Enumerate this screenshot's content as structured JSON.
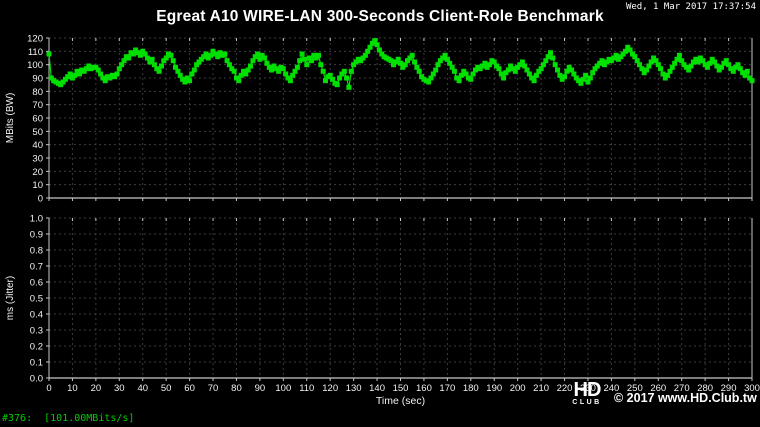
{
  "window": {
    "timestamp": "Wed, 1 Mar 2017 17:37:54"
  },
  "title": "Egreat A10 WIRE-LAN 300-Seconds Client-Role Benchmark",
  "status_bar": {
    "text": "#376:  [101.00MBits/s]"
  },
  "watermark": {
    "logo_hd": "HD",
    "logo_club": "CLUB",
    "copyright": "© 2017 www.HD.Club.tw"
  },
  "colors": {
    "background": "#000000",
    "series_green": "#00e000",
    "grid": "#3d3d3d",
    "axis": "#c8c8c8",
    "tick_label": "#f2f2f2",
    "status_green": "#00cc00",
    "watermark_white": "#ffffff"
  },
  "chart_data": [
    {
      "type": "line",
      "name": "bandwidth-panel",
      "ylabel": "MBits (BW)",
      "xlabel": "",
      "xlim": [
        0,
        300
      ],
      "ylim": [
        0,
        120
      ],
      "x_tick_step": 10,
      "y_tick_step": 10,
      "y_tick_decimals": 0,
      "show_x_tick_labels": false,
      "grid": true,
      "legend": "none",
      "marker": "square",
      "series": [
        {
          "name": "bandwidth",
          "color": "#00e000",
          "x_start": 0,
          "x_step": 1,
          "values": [
            108,
            90,
            88,
            87,
            86,
            85,
            87,
            89,
            91,
            93,
            90,
            92,
            95,
            93,
            96,
            95,
            97,
            99,
            97,
            98,
            98,
            96,
            93,
            90,
            88,
            91,
            90,
            92,
            91,
            93,
            97,
            100,
            103,
            106,
            105,
            109,
            108,
            111,
            109,
            107,
            110,
            108,
            105,
            102,
            104,
            100,
            97,
            95,
            99,
            103,
            105,
            108,
            107,
            103,
            98,
            95,
            92,
            89,
            87,
            90,
            88,
            93,
            96,
            100,
            102,
            104,
            106,
            108,
            105,
            107,
            110,
            108,
            106,
            109,
            107,
            108,
            103,
            100,
            97,
            95,
            90,
            88,
            92,
            95,
            93,
            96,
            99,
            103,
            106,
            108,
            104,
            107,
            105,
            101,
            98,
            96,
            99,
            97,
            95,
            98,
            97,
            93,
            90,
            88,
            92,
            95,
            98,
            103,
            108,
            104,
            100,
            105,
            103,
            107,
            105,
            107,
            100,
            95,
            88,
            91,
            92,
            89,
            86,
            85,
            90,
            93,
            95,
            90,
            83,
            95,
            100,
            102,
            104,
            103,
            105,
            107,
            110,
            113,
            116,
            118,
            115,
            111,
            108,
            106,
            105,
            104,
            103,
            100,
            102,
            104,
            101,
            98,
            100,
            103,
            105,
            107,
            102,
            98,
            95,
            91,
            89,
            88,
            87,
            90,
            93,
            96,
            100,
            103,
            105,
            107,
            104,
            101,
            98,
            95,
            90,
            88,
            92,
            95,
            93,
            90,
            89,
            93,
            96,
            98,
            97,
            99,
            101,
            98,
            100,
            103,
            102,
            99,
            97,
            93,
            90,
            94,
            96,
            99,
            97,
            95,
            98,
            100,
            102,
            99,
            96,
            93,
            90,
            88,
            92,
            95,
            97,
            100,
            103,
            106,
            109,
            105,
            100,
            96,
            92,
            89,
            91,
            95,
            98,
            96,
            93,
            90,
            88,
            86,
            89,
            92,
            87,
            90,
            94,
            97,
            99,
            101,
            103,
            100,
            102,
            104,
            103,
            105,
            107,
            104,
            106,
            108,
            110,
            113,
            111,
            108,
            106,
            103,
            100,
            97,
            94,
            96,
            99,
            102,
            105,
            103,
            100,
            97,
            93,
            90,
            92,
            95,
            98,
            101,
            104,
            107,
            103,
            100,
            98,
            96,
            99,
            102,
            104,
            102,
            105,
            103,
            100,
            98,
            101,
            104,
            102,
            99,
            96,
            98,
            101,
            103,
            100,
            97,
            95,
            98,
            100,
            97,
            94,
            92,
            95,
            90,
            88
          ]
        }
      ]
    },
    {
      "type": "line",
      "name": "jitter-panel",
      "ylabel": "ms (Jitter)",
      "xlabel": "Time (sec)",
      "xlim": [
        0,
        300
      ],
      "ylim": [
        0,
        1
      ],
      "x_tick_step": 10,
      "y_tick_step": 0.1,
      "y_tick_decimals": 1,
      "show_x_tick_labels": true,
      "grid": true,
      "legend": "none",
      "series": []
    }
  ]
}
